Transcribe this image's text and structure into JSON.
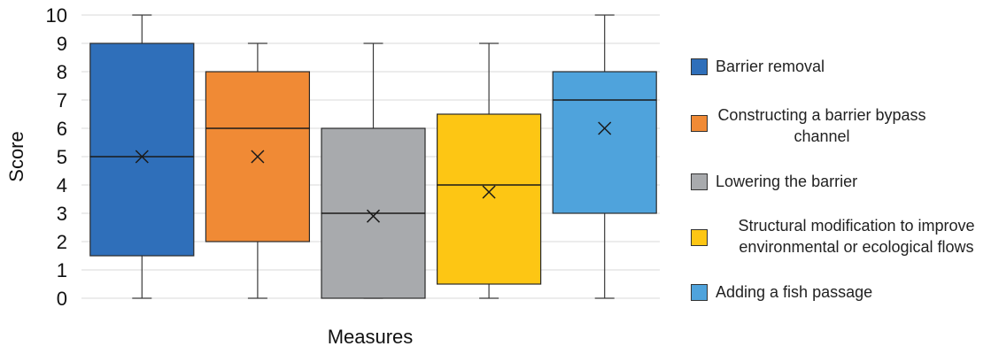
{
  "chart_data": {
    "type": "box",
    "xlabel": "Measures",
    "ylabel": "Score",
    "ylim": [
      0,
      10
    ],
    "yticks": [
      0,
      1,
      2,
      3,
      4,
      5,
      6,
      7,
      8,
      9,
      10
    ],
    "grid": true,
    "legend_position": "right",
    "series": [
      {
        "name": "Barrier removal",
        "color": "#2f6fba",
        "min": 0,
        "q1": 1.5,
        "median": 5,
        "q3": 9,
        "max": 10,
        "mean": 5
      },
      {
        "name": "Constructing a barrier bypass channel",
        "color": "#f08a35",
        "min": 0,
        "q1": 2,
        "median": 6,
        "q3": 8,
        "max": 9,
        "mean": 5
      },
      {
        "name": "Lowering the barrier",
        "color": "#a8aaad",
        "min": 0,
        "q1": 0,
        "median": 3,
        "q3": 6,
        "max": 9,
        "mean": 2.9
      },
      {
        "name": "Structural modification to improve environmental or ecological flows",
        "color": "#fdc614",
        "min": 0,
        "q1": 0.5,
        "median": 4,
        "q3": 6.5,
        "max": 9,
        "mean": 3.75
      },
      {
        "name": "Adding a fish passage",
        "color": "#4fa3dc",
        "min": 0,
        "q1": 3,
        "median": 7,
        "q3": 8,
        "max": 10,
        "mean": 6
      }
    ]
  },
  "legend": {
    "items": [
      {
        "label": "Barrier removal",
        "color": "#2f6fba"
      },
      {
        "label": "Constructing a barrier bypass channel",
        "color": "#f08a35"
      },
      {
        "label": "Lowering the barrier",
        "color": "#a8aaad"
      },
      {
        "label": "Structural modification to improve environmental or ecological flows",
        "color": "#fdc614"
      },
      {
        "label": "Adding a fish passage",
        "color": "#4fa3dc"
      }
    ]
  }
}
